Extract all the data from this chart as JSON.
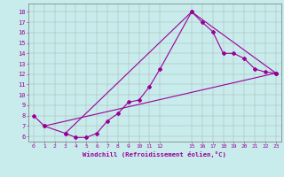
{
  "xlabel": "Windchill (Refroidissement éolien,°C)",
  "bg_color": "#c8ecec",
  "line_color": "#990099",
  "xlim": [
    -0.5,
    23.5
  ],
  "ylim": [
    5.5,
    18.8
  ],
  "xtick_pos": [
    0,
    1,
    2,
    3,
    4,
    5,
    6,
    7,
    8,
    9,
    10,
    11,
    12,
    15,
    16,
    17,
    18,
    19,
    20,
    21,
    22,
    23
  ],
  "xtick_labels": [
    "0",
    "1",
    "2",
    "3",
    "4",
    "5",
    "6",
    "7",
    "8",
    "9",
    "10",
    "11",
    "12",
    "15",
    "16",
    "17",
    "18",
    "19",
    "20",
    "21",
    "22",
    "23"
  ],
  "yticks": [
    6,
    7,
    8,
    9,
    10,
    11,
    12,
    13,
    14,
    15,
    16,
    17,
    18
  ],
  "series1_x": [
    0,
    1,
    3,
    4,
    5,
    6,
    7,
    8,
    9,
    10,
    11,
    12,
    15,
    16,
    17,
    18,
    19,
    20,
    21,
    22,
    23
  ],
  "series1_y": [
    8.0,
    7.0,
    6.3,
    5.9,
    5.9,
    6.3,
    7.5,
    8.2,
    9.3,
    9.5,
    10.8,
    12.5,
    18.0,
    17.0,
    16.1,
    14.0,
    14.0,
    13.5,
    12.5,
    12.2,
    12.1
  ],
  "series2_x": [
    1,
    23
  ],
  "series2_y": [
    7.0,
    12.1
  ],
  "series3_x": [
    3,
    15,
    23
  ],
  "series3_y": [
    6.3,
    18.0,
    12.1
  ]
}
